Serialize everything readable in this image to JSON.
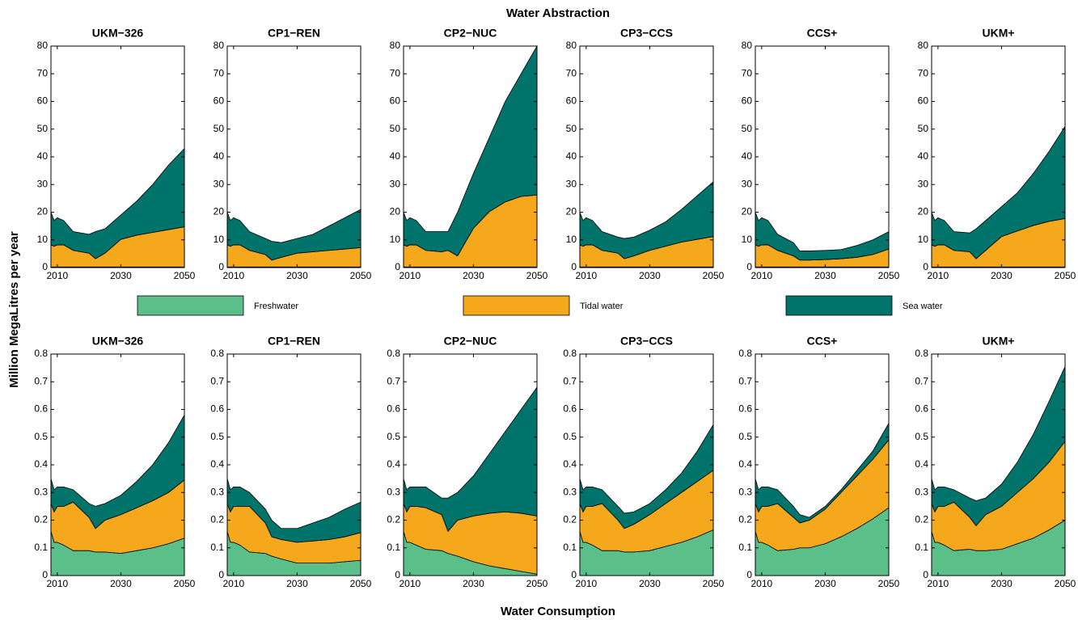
{
  "figure": {
    "top_title": "Water Abstraction",
    "bottom_title": "Water Consumption",
    "ylabel": "Million MegaLitres per year"
  },
  "chart_data": [
    {
      "type": "area",
      "title": "UKM−326",
      "x": [
        2008,
        2009,
        2010,
        2012,
        2015,
        2020,
        2022,
        2025,
        2030,
        2035,
        2040,
        2045,
        2050
      ],
      "xlim": [
        2008,
        2050
      ],
      "xticks": [
        2010,
        2030,
        2050
      ],
      "ylim": [
        0,
        80
      ],
      "yticks": [
        0,
        10,
        20,
        30,
        40,
        50,
        60,
        70,
        80
      ],
      "series": [
        {
          "name": "Freshwater",
          "color": "#5bbf8a",
          "values": [
            0.2,
            0.2,
            0.2,
            0.2,
            0.2,
            0.2,
            0.2,
            0.2,
            0.2,
            0.2,
            0.2,
            0.2,
            0.2
          ]
        },
        {
          "name": "Tidal water",
          "color": "#f5a81c",
          "values": [
            8,
            7.5,
            8,
            8,
            6,
            5,
            3,
            5,
            10,
            11.5,
            12.5,
            13.5,
            14.5
          ]
        },
        {
          "name": "Sea water",
          "color": "#00736a",
          "values": [
            11.8,
            9.3,
            9.8,
            8.8,
            6.8,
            6.8,
            9.8,
            8.8,
            8.8,
            12.3,
            17.3,
            23.3,
            28.3
          ]
        }
      ]
    },
    {
      "type": "area",
      "title": "CP1−REN",
      "x": [
        2008,
        2009,
        2010,
        2012,
        2015,
        2020,
        2022,
        2025,
        2030,
        2035,
        2040,
        2045,
        2050
      ],
      "xlim": [
        2008,
        2050
      ],
      "xticks": [
        2010,
        2030,
        2050
      ],
      "ylim": [
        0,
        80
      ],
      "yticks": [
        0,
        10,
        20,
        30,
        40,
        50,
        60,
        70,
        80
      ],
      "series": [
        {
          "name": "Freshwater",
          "color": "#5bbf8a",
          "values": [
            0.2,
            0.2,
            0.2,
            0.2,
            0.2,
            0.2,
            0.2,
            0.2,
            0.2,
            0.2,
            0.2,
            0.2,
            0.2
          ]
        },
        {
          "name": "Tidal water",
          "color": "#f5a81c",
          "values": [
            8,
            7.5,
            8,
            8,
            6,
            4.5,
            2.5,
            3.5,
            5,
            5.5,
            6,
            6.5,
            7
          ]
        },
        {
          "name": "Sea water",
          "color": "#00736a",
          "values": [
            11.8,
            9.3,
            9.8,
            8.8,
            6.8,
            5.8,
            6.8,
            5.3,
            5.3,
            6.3,
            8.8,
            11.3,
            13.8
          ]
        }
      ]
    },
    {
      "type": "area",
      "title": "CP2−NUC",
      "x": [
        2008,
        2009,
        2010,
        2012,
        2015,
        2020,
        2022,
        2025,
        2030,
        2035,
        2040,
        2045,
        2050
      ],
      "xlim": [
        2008,
        2050
      ],
      "xticks": [
        2010,
        2030,
        2050
      ],
      "ylim": [
        0,
        80
      ],
      "yticks": [
        0,
        10,
        20,
        30,
        40,
        50,
        60,
        70,
        80
      ],
      "series": [
        {
          "name": "Freshwater",
          "color": "#5bbf8a",
          "values": [
            0.2,
            0.2,
            0.2,
            0.2,
            0.2,
            0.2,
            0.2,
            0.2,
            0.2,
            0.2,
            0.2,
            0.2,
            0.2
          ]
        },
        {
          "name": "Tidal water",
          "color": "#f5a81c",
          "values": [
            8,
            7.5,
            8,
            8,
            6,
            5.5,
            6,
            4,
            14,
            20,
            23.5,
            25.5,
            26
          ]
        },
        {
          "name": "Sea water",
          "color": "#00736a",
          "values": [
            11.8,
            9.3,
            9.8,
            8.8,
            6.8,
            7.3,
            6.8,
            15.8,
            19.8,
            26.8,
            36.3,
            44.3,
            53.8
          ]
        }
      ]
    },
    {
      "type": "area",
      "title": "CP3−CCS",
      "x": [
        2008,
        2009,
        2010,
        2012,
        2015,
        2020,
        2022,
        2025,
        2030,
        2035,
        2040,
        2045,
        2050
      ],
      "xlim": [
        2008,
        2050
      ],
      "xticks": [
        2010,
        2030,
        2050
      ],
      "ylim": [
        0,
        80
      ],
      "yticks": [
        0,
        10,
        20,
        30,
        40,
        50,
        60,
        70,
        80
      ],
      "series": [
        {
          "name": "Freshwater",
          "color": "#5bbf8a",
          "values": [
            0.2,
            0.2,
            0.2,
            0.2,
            0.2,
            0.2,
            0.2,
            0.2,
            0.2,
            0.2,
            0.2,
            0.2,
            0.2
          ]
        },
        {
          "name": "Tidal water",
          "color": "#f5a81c",
          "values": [
            8,
            7.5,
            8,
            8,
            6,
            5,
            3,
            4,
            6,
            7.5,
            9,
            10,
            11
          ]
        },
        {
          "name": "Sea water",
          "color": "#00736a",
          "values": [
            11.8,
            9.3,
            9.8,
            8.8,
            6.8,
            5.8,
            7.3,
            6.8,
            7.3,
            8.8,
            11.8,
            15.8,
            19.8
          ]
        }
      ]
    },
    {
      "type": "area",
      "title": "CCS+",
      "x": [
        2008,
        2009,
        2010,
        2012,
        2015,
        2020,
        2022,
        2025,
        2030,
        2035,
        2040,
        2045,
        2050
      ],
      "xlim": [
        2008,
        2050
      ],
      "xticks": [
        2010,
        2030,
        2050
      ],
      "ylim": [
        0,
        80
      ],
      "yticks": [
        0,
        10,
        20,
        30,
        40,
        50,
        60,
        70,
        80
      ],
      "series": [
        {
          "name": "Freshwater",
          "color": "#5bbf8a",
          "values": [
            0.2,
            0.2,
            0.2,
            0.2,
            0.2,
            0.2,
            0.2,
            0.2,
            0.2,
            0.2,
            0.2,
            0.2,
            0.2
          ]
        },
        {
          "name": "Tidal water",
          "color": "#f5a81c",
          "values": [
            8,
            7.5,
            8,
            8,
            6,
            4,
            2.5,
            2.5,
            2.7,
            3,
            3.5,
            4.5,
            6.5
          ]
        },
        {
          "name": "Sea water",
          "color": "#00736a",
          "values": [
            11.8,
            9.3,
            9.8,
            8.8,
            5.8,
            4.8,
            3.3,
            3.3,
            3.3,
            3.3,
            4.3,
            5.3,
            6.3
          ]
        }
      ]
    },
    {
      "type": "area",
      "title": "UKM+",
      "x": [
        2008,
        2009,
        2010,
        2012,
        2015,
        2020,
        2022,
        2025,
        2030,
        2035,
        2040,
        2045,
        2050
      ],
      "xlim": [
        2008,
        2050
      ],
      "xticks": [
        2010,
        2030,
        2050
      ],
      "ylim": [
        0,
        80
      ],
      "yticks": [
        0,
        10,
        20,
        30,
        40,
        50,
        60,
        70,
        80
      ],
      "series": [
        {
          "name": "Freshwater",
          "color": "#5bbf8a",
          "values": [
            0.2,
            0.2,
            0.2,
            0.2,
            0.2,
            0.2,
            0.2,
            0.2,
            0.2,
            0.2,
            0.2,
            0.2,
            0.2
          ]
        },
        {
          "name": "Tidal water",
          "color": "#f5a81c",
          "values": [
            8,
            7.5,
            8,
            8,
            6,
            5.5,
            3,
            6,
            11,
            13,
            15,
            16.5,
            17.5
          ]
        },
        {
          "name": "Sea water",
          "color": "#00736a",
          "values": [
            11.8,
            9.3,
            9.8,
            8.8,
            6.8,
            6.8,
            10.8,
            10.8,
            10.8,
            13.8,
            18.8,
            25.3,
            33.3
          ]
        }
      ]
    },
    {
      "type": "area",
      "title": "UKM−326",
      "x": [
        2008,
        2009,
        2010,
        2012,
        2015,
        2020,
        2022,
        2025,
        2030,
        2035,
        2040,
        2045,
        2050
      ],
      "xlim": [
        2008,
        2050
      ],
      "xticks": [
        2010,
        2030,
        2050
      ],
      "ylim": [
        0,
        0.8
      ],
      "yticks": [
        0,
        0.1,
        0.2,
        0.3,
        0.4,
        0.5,
        0.6,
        0.7,
        0.8
      ],
      "series": [
        {
          "name": "Freshwater",
          "color": "#5bbf8a",
          "values": [
            0.16,
            0.12,
            0.12,
            0.11,
            0.09,
            0.09,
            0.085,
            0.085,
            0.08,
            0.09,
            0.1,
            0.115,
            0.135
          ]
        },
        {
          "name": "Tidal water",
          "color": "#f5a81c",
          "values": [
            0.1,
            0.11,
            0.13,
            0.14,
            0.175,
            0.12,
            0.085,
            0.115,
            0.14,
            0.155,
            0.17,
            0.185,
            0.21
          ]
        },
        {
          "name": "Sea water",
          "color": "#00736a",
          "values": [
            0.09,
            0.08,
            0.07,
            0.07,
            0.045,
            0.05,
            0.08,
            0.06,
            0.07,
            0.095,
            0.13,
            0.18,
            0.235
          ]
        }
      ]
    },
    {
      "type": "area",
      "title": "CP1−REN",
      "x": [
        2008,
        2009,
        2010,
        2012,
        2015,
        2020,
        2022,
        2025,
        2030,
        2035,
        2040,
        2045,
        2050
      ],
      "xlim": [
        2008,
        2050
      ],
      "xticks": [
        2010,
        2030,
        2050
      ],
      "ylim": [
        0,
        0.8
      ],
      "yticks": [
        0,
        0.1,
        0.2,
        0.3,
        0.4,
        0.5,
        0.6,
        0.7,
        0.8
      ],
      "series": [
        {
          "name": "Freshwater",
          "color": "#5bbf8a",
          "values": [
            0.16,
            0.12,
            0.12,
            0.11,
            0.085,
            0.08,
            0.07,
            0.06,
            0.045,
            0.045,
            0.045,
            0.05,
            0.055
          ]
        },
        {
          "name": "Tidal water",
          "color": "#f5a81c",
          "values": [
            0.1,
            0.11,
            0.13,
            0.14,
            0.165,
            0.11,
            0.07,
            0.07,
            0.075,
            0.08,
            0.085,
            0.09,
            0.1
          ]
        },
        {
          "name": "Sea water",
          "color": "#00736a",
          "values": [
            0.09,
            0.08,
            0.07,
            0.07,
            0.05,
            0.05,
            0.06,
            0.04,
            0.05,
            0.065,
            0.08,
            0.1,
            0.11
          ]
        }
      ]
    },
    {
      "type": "area",
      "title": "CP2−NUC",
      "x": [
        2008,
        2009,
        2010,
        2012,
        2015,
        2020,
        2022,
        2025,
        2030,
        2035,
        2040,
        2045,
        2050
      ],
      "xlim": [
        2008,
        2050
      ],
      "xticks": [
        2010,
        2030,
        2050
      ],
      "ylim": [
        0,
        0.8
      ],
      "yticks": [
        0,
        0.1,
        0.2,
        0.3,
        0.4,
        0.5,
        0.6,
        0.7,
        0.8
      ],
      "series": [
        {
          "name": "Freshwater",
          "color": "#5bbf8a",
          "values": [
            0.16,
            0.12,
            0.12,
            0.11,
            0.095,
            0.09,
            0.08,
            0.07,
            0.05,
            0.035,
            0.025,
            0.015,
            0.005
          ]
        },
        {
          "name": "Tidal water",
          "color": "#f5a81c",
          "values": [
            0.1,
            0.11,
            0.13,
            0.14,
            0.15,
            0.13,
            0.08,
            0.13,
            0.165,
            0.19,
            0.205,
            0.21,
            0.21
          ]
        },
        {
          "name": "Sea water",
          "color": "#00736a",
          "values": [
            0.09,
            0.08,
            0.07,
            0.07,
            0.075,
            0.06,
            0.12,
            0.1,
            0.145,
            0.215,
            0.29,
            0.375,
            0.465
          ]
        }
      ]
    },
    {
      "type": "area",
      "title": "CP3−CCS",
      "x": [
        2008,
        2009,
        2010,
        2012,
        2015,
        2020,
        2022,
        2025,
        2030,
        2035,
        2040,
        2045,
        2050
      ],
      "xlim": [
        2008,
        2050
      ],
      "xticks": [
        2010,
        2030,
        2050
      ],
      "ylim": [
        0,
        0.8
      ],
      "yticks": [
        0,
        0.1,
        0.2,
        0.3,
        0.4,
        0.5,
        0.6,
        0.7,
        0.8
      ],
      "series": [
        {
          "name": "Freshwater",
          "color": "#5bbf8a",
          "values": [
            0.16,
            0.12,
            0.12,
            0.11,
            0.09,
            0.09,
            0.085,
            0.085,
            0.09,
            0.105,
            0.12,
            0.14,
            0.165
          ]
        },
        {
          "name": "Tidal water",
          "color": "#f5a81c",
          "values": [
            0.1,
            0.11,
            0.13,
            0.14,
            0.17,
            0.11,
            0.085,
            0.1,
            0.13,
            0.155,
            0.18,
            0.2,
            0.215
          ]
        },
        {
          "name": "Sea water",
          "color": "#00736a",
          "values": [
            0.09,
            0.08,
            0.07,
            0.07,
            0.05,
            0.05,
            0.055,
            0.045,
            0.04,
            0.05,
            0.07,
            0.11,
            0.165
          ]
        }
      ]
    },
    {
      "type": "area",
      "title": "CCS+",
      "x": [
        2008,
        2009,
        2010,
        2012,
        2015,
        2020,
        2022,
        2025,
        2030,
        2035,
        2040,
        2045,
        2050
      ],
      "xlim": [
        2008,
        2050
      ],
      "xticks": [
        2010,
        2030,
        2050
      ],
      "ylim": [
        0,
        0.8
      ],
      "yticks": [
        0,
        0.1,
        0.2,
        0.3,
        0.4,
        0.5,
        0.6,
        0.7,
        0.8
      ],
      "series": [
        {
          "name": "Freshwater",
          "color": "#5bbf8a",
          "values": [
            0.16,
            0.12,
            0.12,
            0.11,
            0.09,
            0.095,
            0.1,
            0.1,
            0.115,
            0.14,
            0.17,
            0.205,
            0.245
          ]
        },
        {
          "name": "Tidal water",
          "color": "#f5a81c",
          "values": [
            0.1,
            0.11,
            0.13,
            0.14,
            0.17,
            0.115,
            0.09,
            0.1,
            0.125,
            0.16,
            0.19,
            0.215,
            0.245
          ]
        },
        {
          "name": "Sea water",
          "color": "#00736a",
          "values": [
            0.09,
            0.08,
            0.07,
            0.07,
            0.05,
            0.04,
            0.03,
            0.01,
            0.01,
            0.01,
            0.02,
            0.03,
            0.06
          ]
        }
      ]
    },
    {
      "type": "area",
      "title": "UKM+",
      "x": [
        2008,
        2009,
        2010,
        2012,
        2015,
        2020,
        2022,
        2025,
        2030,
        2035,
        2040,
        2045,
        2050
      ],
      "xlim": [
        2008,
        2050
      ],
      "xticks": [
        2010,
        2030,
        2050
      ],
      "ylim": [
        0,
        0.8
      ],
      "yticks": [
        0,
        0.1,
        0.2,
        0.3,
        0.4,
        0.5,
        0.6,
        0.7,
        0.8
      ],
      "series": [
        {
          "name": "Freshwater",
          "color": "#5bbf8a",
          "values": [
            0.16,
            0.12,
            0.12,
            0.11,
            0.09,
            0.095,
            0.09,
            0.09,
            0.095,
            0.115,
            0.135,
            0.165,
            0.2
          ]
        },
        {
          "name": "Tidal water",
          "color": "#f5a81c",
          "values": [
            0.1,
            0.11,
            0.13,
            0.14,
            0.175,
            0.115,
            0.09,
            0.13,
            0.155,
            0.185,
            0.215,
            0.245,
            0.285
          ]
        },
        {
          "name": "Sea water",
          "color": "#00736a",
          "values": [
            0.09,
            0.08,
            0.07,
            0.07,
            0.045,
            0.07,
            0.09,
            0.06,
            0.08,
            0.11,
            0.16,
            0.22,
            0.27
          ]
        }
      ]
    }
  ]
}
